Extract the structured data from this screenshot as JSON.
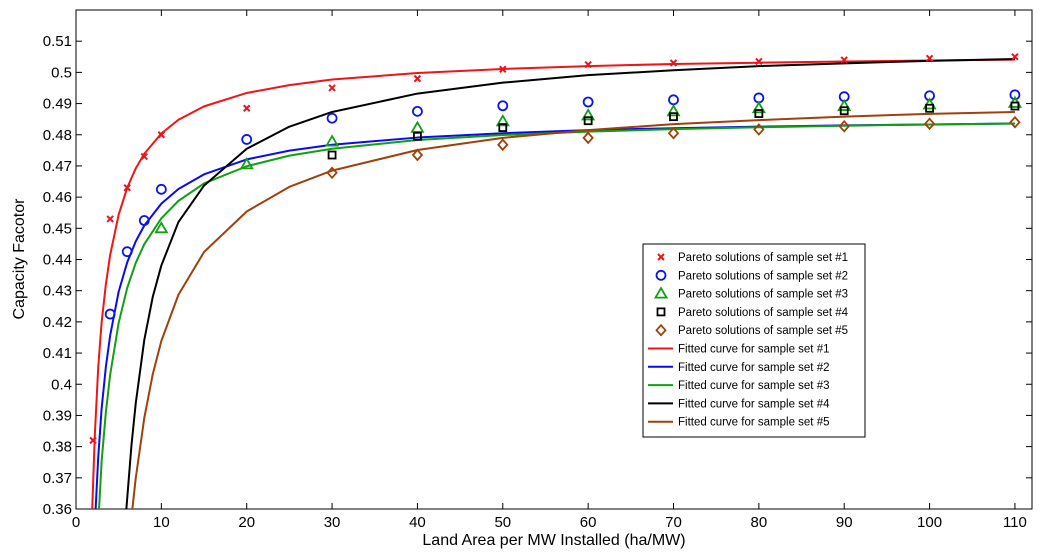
{
  "chart_data": {
    "type": "scatter",
    "xlabel": "Land Area per MW Installed (ha/MW)",
    "ylabel": "Capacity Facotor",
    "xlim": [
      0,
      112
    ],
    "ylim": [
      0.36,
      0.52
    ],
    "xticks": [
      0,
      10,
      20,
      30,
      40,
      50,
      60,
      70,
      80,
      90,
      100,
      110
    ],
    "yticks": [
      0.36,
      0.37,
      0.38,
      0.39,
      0.4,
      0.41,
      0.42,
      0.43,
      0.44,
      0.45,
      0.46,
      0.47,
      0.48,
      0.49,
      0.5,
      0.51
    ],
    "legend_position": "center-right",
    "grid": false,
    "series": [
      {
        "name": "Pareto solutions of sample set #1",
        "kind": "points",
        "marker": "x",
        "color": "#e8141e",
        "x": [
          2,
          4,
          6,
          8,
          10,
          20,
          30,
          40,
          50,
          60,
          70,
          80,
          90,
          100,
          110
        ],
        "y": [
          0.382,
          0.453,
          0.463,
          0.473,
          0.48,
          0.4885,
          0.495,
          0.498,
          0.501,
          0.5025,
          0.503,
          0.5035,
          0.504,
          0.5045,
          0.505
        ]
      },
      {
        "name": "Pareto solutions of sample set #2",
        "kind": "points",
        "marker": "circle",
        "color": "#0a14f0",
        "x": [
          4,
          6,
          8,
          10,
          20,
          30,
          40,
          50,
          60,
          70,
          80,
          90,
          100,
          110
        ],
        "y": [
          0.4225,
          0.4425,
          0.4525,
          0.4625,
          0.4785,
          0.4853,
          0.4875,
          0.4893,
          0.4905,
          0.4912,
          0.4918,
          0.4922,
          0.4925,
          0.4928
        ]
      },
      {
        "name": "Pareto solutions of sample set #3",
        "kind": "points",
        "marker": "triangle",
        "color": "#10a010",
        "x": [
          10,
          20,
          30,
          40,
          50,
          60,
          70,
          80,
          90,
          100,
          110
        ],
        "y": [
          0.45,
          0.4705,
          0.4778,
          0.4822,
          0.4843,
          0.4862,
          0.4875,
          0.4885,
          0.4892,
          0.4897,
          0.4902
        ]
      },
      {
        "name": "Pareto solutions of sample set #4",
        "kind": "points",
        "marker": "square",
        "color": "#000000",
        "x": [
          30,
          40,
          50,
          60,
          70,
          80,
          90,
          100,
          110
        ],
        "y": [
          0.4735,
          0.4795,
          0.4823,
          0.4845,
          0.4858,
          0.4868,
          0.4877,
          0.4885,
          0.4892
        ]
      },
      {
        "name": "Pareto solutions of sample set #5",
        "kind": "points",
        "marker": "diamond",
        "color": "#a0400a",
        "x": [
          30,
          40,
          50,
          60,
          70,
          80,
          90,
          100,
          110
        ],
        "y": [
          0.4678,
          0.4735,
          0.4768,
          0.479,
          0.4805,
          0.4817,
          0.4827,
          0.4835,
          0.484
        ]
      },
      {
        "name": "Fitted curve for sample set #1",
        "kind": "line",
        "color": "#f01414",
        "x": [
          1.9,
          2.2,
          2.6,
          3,
          3.5,
          4,
          5,
          6,
          7,
          8,
          10,
          12,
          15,
          20,
          25,
          30,
          40,
          50,
          60,
          70,
          80,
          90,
          100,
          110
        ],
        "y": [
          0.36,
          0.3834,
          0.4053,
          0.4198,
          0.4321,
          0.4414,
          0.4544,
          0.463,
          0.4692,
          0.4739,
          0.4804,
          0.4848,
          0.4891,
          0.4934,
          0.4959,
          0.4977,
          0.4998,
          0.5011,
          0.502,
          0.5027,
          0.5031,
          0.5035,
          0.5038,
          0.5041
        ]
      },
      {
        "name": "Fitted curve for sample set #2",
        "kind": "line",
        "color": "#0a0af0",
        "x": [
          2.3,
          2.6,
          3,
          3.5,
          4,
          5,
          6,
          7,
          8,
          10,
          12,
          15,
          20,
          25,
          30,
          40,
          50,
          60,
          70,
          80,
          90,
          100,
          110
        ],
        "y": [
          0.36,
          0.3764,
          0.3922,
          0.4056,
          0.4156,
          0.4297,
          0.4391,
          0.4458,
          0.4509,
          0.4579,
          0.4626,
          0.4673,
          0.4721,
          0.4749,
          0.4768,
          0.4791,
          0.4805,
          0.4815,
          0.4821,
          0.4826,
          0.483,
          0.4833,
          0.4836
        ]
      },
      {
        "name": "Fitted curve for sample set #3",
        "kind": "line",
        "color": "#10a010",
        "x": [
          2.7,
          3,
          3.5,
          4,
          5,
          6,
          7,
          8,
          10,
          12,
          15,
          20,
          25,
          30,
          40,
          50,
          60,
          70,
          80,
          90,
          100,
          110
        ],
        "y": [
          0.36,
          0.3752,
          0.3911,
          0.403,
          0.4197,
          0.4309,
          0.4389,
          0.4449,
          0.4532,
          0.4588,
          0.4644,
          0.4699,
          0.4733,
          0.4755,
          0.4783,
          0.4799,
          0.481,
          0.4818,
          0.4824,
          0.4829,
          0.4833,
          0.4836
        ]
      },
      {
        "name": "Fitted curve for sample set #4",
        "kind": "line",
        "color": "#000000",
        "x": [
          5.9,
          6.5,
          7,
          8,
          9,
          10,
          12,
          15,
          20,
          25,
          30,
          40,
          50,
          60,
          70,
          80,
          90,
          100,
          110
        ],
        "y": [
          0.36,
          0.3805,
          0.3939,
          0.4142,
          0.4281,
          0.4381,
          0.452,
          0.4637,
          0.4755,
          0.4826,
          0.4873,
          0.4932,
          0.4967,
          0.4991,
          0.5007,
          0.502,
          0.5029,
          0.5037,
          0.5043
        ]
      },
      {
        "name": "Fitted curve for sample set #5",
        "kind": "line",
        "color": "#a0400a",
        "x": [
          6.6,
          7,
          8,
          9,
          10,
          12,
          15,
          20,
          25,
          30,
          40,
          50,
          60,
          70,
          80,
          90,
          100,
          110
        ],
        "y": [
          0.36,
          0.3699,
          0.3892,
          0.4033,
          0.4139,
          0.4287,
          0.4424,
          0.4554,
          0.4633,
          0.4685,
          0.4751,
          0.479,
          0.4815,
          0.4834,
          0.4847,
          0.4858,
          0.4867,
          0.4873
        ]
      }
    ]
  }
}
